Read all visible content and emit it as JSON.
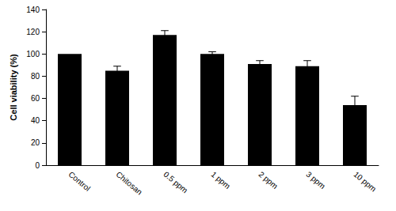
{
  "chart_data": {
    "type": "bar",
    "y_label": "Cell viability (%)",
    "categories": [
      "Control",
      "Chitosan",
      "0.5 ppm",
      "1 ppm",
      "2 ppm",
      "3 ppm",
      "10 ppm"
    ],
    "values": [
      100,
      85,
      117,
      100,
      91,
      89,
      54
    ],
    "errors": [
      0,
      4,
      4,
      2,
      3,
      5,
      8
    ],
    "color": "#000000",
    "ylim": [
      0,
      140
    ],
    "yticks": [
      0,
      20,
      40,
      60,
      80,
      100,
      120,
      140
    ],
    "grid": false
  }
}
